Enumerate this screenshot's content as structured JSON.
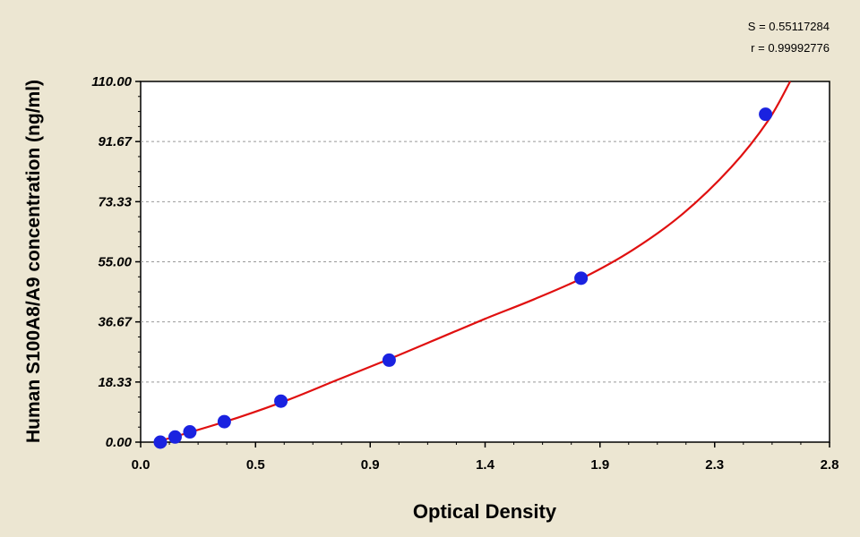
{
  "chart_data": {
    "type": "scatter",
    "xlabel": "Optical Density",
    "ylabel": "Human S100A8/A9 concentration (ng/ml)",
    "xlim": [
      0.0,
      2.8
    ],
    "ylim": [
      0.0,
      110.0
    ],
    "x_ticks": [
      "0.0",
      "0.5",
      "0.9",
      "1.4",
      "1.9",
      "2.3",
      "2.8"
    ],
    "x_tick_values": [
      0.0,
      0.467,
      0.933,
      1.4,
      1.867,
      2.333,
      2.8
    ],
    "y_ticks": [
      "0.00",
      "18.33",
      "36.67",
      "55.00",
      "73.33",
      "91.67",
      "110.00"
    ],
    "y_tick_values": [
      0.0,
      18.33,
      36.67,
      55.0,
      73.33,
      91.67,
      110.0
    ],
    "grid": "horizontal dashed",
    "point_color": "#1a22e0",
    "curve_color": "#e01010",
    "series": [
      {
        "kind": "points",
        "x": [
          0.08,
          0.14,
          0.2,
          0.34,
          0.57,
          1.01,
          1.79,
          2.54
        ],
        "y": [
          0.0,
          1.56,
          3.13,
          6.25,
          12.5,
          25.0,
          50.0,
          100.0
        ]
      },
      {
        "kind": "fit-curve",
        "x": [
          0.06,
          0.2,
          0.4,
          0.6,
          0.8,
          1.0,
          1.2,
          1.4,
          1.6,
          1.8,
          2.0,
          2.2,
          2.4,
          2.55,
          2.64
        ],
        "y": [
          0.0,
          3.0,
          7.6,
          12.9,
          19.0,
          25.0,
          31.3,
          37.6,
          43.6,
          50.2,
          58.6,
          69.4,
          83.8,
          98.0,
          110.0
        ]
      }
    ]
  },
  "stats": {
    "s_label": "S",
    "s_value": "0.55117284",
    "r_label": "r",
    "r_value": "0.99992776",
    "eq": "="
  }
}
